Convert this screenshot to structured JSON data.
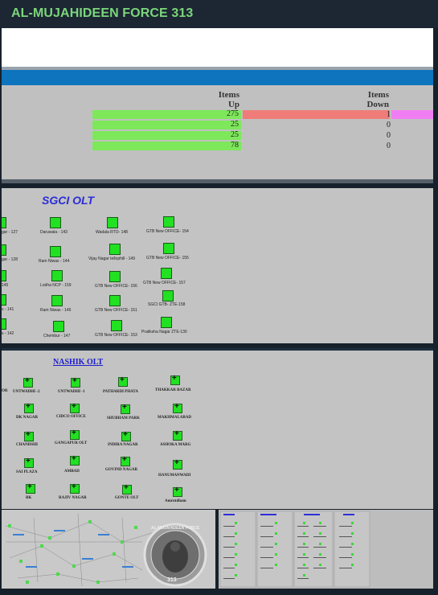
{
  "header": {
    "title": "AL-MUJAHIDEEN FORCE 313"
  },
  "panel1": {
    "col_up": [
      "Items",
      "Up"
    ],
    "col_down": [
      "Items",
      "Down"
    ],
    "rows": [
      {
        "up": "275",
        "down": "1"
      },
      {
        "up": "25",
        "down": "0"
      },
      {
        "up": "25",
        "down": "0"
      },
      {
        "up": "78",
        "down": "0"
      }
    ]
  },
  "panel2": {
    "title": "SGCI OLT",
    "nodes": [
      "gar - 127",
      "gar - 128",
      "145",
      "s - 141",
      "s - 142",
      "Daruwala - 143",
      "Ram Niwas - 144",
      "Lodha NCP - 159",
      "Ram Niwas - 146",
      "Chembur - 147",
      "Wadala RTO- 148",
      "Vijay Nagar tellophill - 149",
      "GTB New OFFICE- 156",
      "GTB New OFFICE- 151",
      "GTB New OFFICE- 153",
      "GTB New OFFICE- 154",
      "GTB New OFFICE- 155",
      "GTB New OFFICE- 157",
      "SGCI GTB- ZTE-158",
      "Pratiksha Nagar ZTE-130"
    ]
  },
  "panel3": {
    "title": "NASHIK OLT",
    "nodes": [
      "OR",
      "UNTWADHI -2",
      "UNTWADHI -1",
      "PATHARDI PHATA",
      "THAKKAR BAZAR",
      "DK NAGAR",
      "CIDCO OFFICE",
      "SHUBHAM PARK",
      "MAKHMALABAD",
      "CHANDSHI",
      "GANGAPUR OLT",
      "INDIRA NAGAR",
      "ASHOKA MARG",
      "SAI PLAZA",
      "AMBAD",
      "GOVIND NAGAR",
      "HANUMANWADI",
      "BK",
      "RAJIV NAGAR",
      "GONTE OLT",
      "Amrutdham"
    ]
  },
  "panel4": {
    "seal_text": "AL-MUJAHIDEEN FORCE",
    "seal_number": "313"
  },
  "colors": {
    "green_bar": "#7de85a",
    "red_bar": "#ef7c78",
    "magenta_bar": "#f07ef2",
    "blue_band": "#0d74bd",
    "node_green": "#22e022"
  }
}
